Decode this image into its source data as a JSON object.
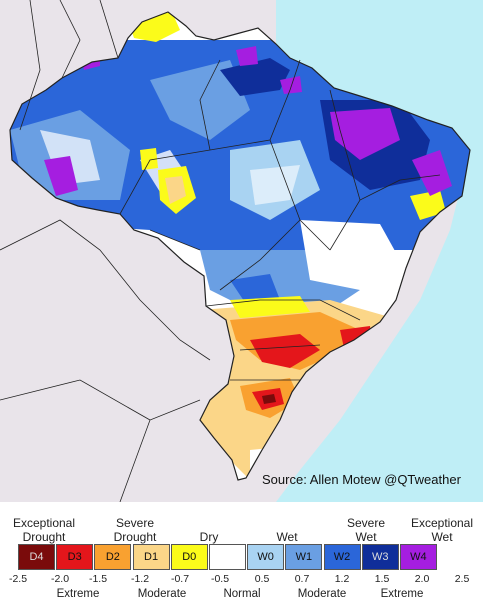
{
  "source": "Source: Allen Motew @QTweather",
  "legend": {
    "top_labels": [
      {
        "line1": "Exceptional",
        "line2": "Drought"
      },
      {
        "line1": "Severe",
        "line2": "Drought"
      },
      {
        "line1": "Dry",
        "line2": ""
      },
      {
        "line1": "Wet",
        "line2": ""
      },
      {
        "line1": "Severe",
        "line2": "Wet"
      },
      {
        "line1": "Exceptional",
        "line2": "Wet"
      }
    ],
    "categories": [
      {
        "code": "D4",
        "color": "#7a0b0b"
      },
      {
        "code": "D3",
        "color": "#e4161b"
      },
      {
        "code": "D2",
        "color": "#f9a130"
      },
      {
        "code": "D1",
        "color": "#fbd688"
      },
      {
        "code": "D0",
        "color": "#fbfb1a"
      },
      {
        "code": "",
        "color": "#ffffff"
      },
      {
        "code": "W0",
        "color": "#a9d3f2"
      },
      {
        "code": "W1",
        "color": "#6a9fe3"
      },
      {
        "code": "W2",
        "color": "#2b66d9"
      },
      {
        "code": "W3",
        "color": "#0f2e9a"
      },
      {
        "code": "W4",
        "color": "#a51ee0"
      }
    ],
    "ticks": [
      "-2.5",
      "-2.0",
      "-1.5",
      "-1.2",
      "-0.7",
      "-0.5",
      "0.5",
      "0.7",
      "1.2",
      "1.5",
      "2.0",
      "2.5"
    ],
    "bottom_labels": [
      "Extreme",
      "Moderate",
      "Normal",
      "Moderate",
      "Extreme"
    ]
  }
}
